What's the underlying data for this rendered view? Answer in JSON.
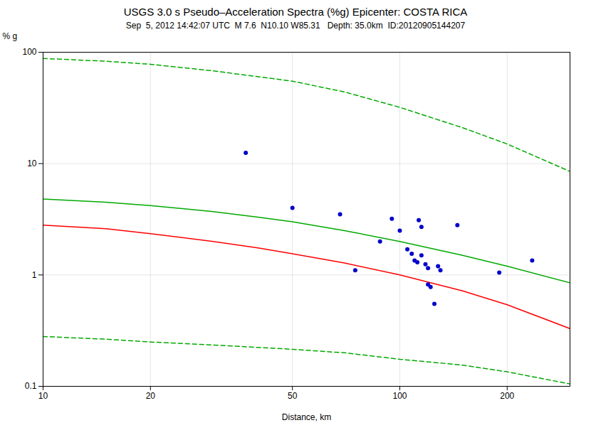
{
  "chart_data": {
    "type": "line",
    "title": "USGS 3.0 s Pseudo–Acceleration Spectra (%g) Epicenter: COSTA RICA",
    "subtitle": "Sep  5, 2012 14:42:07 UTC  M 7.6  N10.10 W85.31   Depth: 35.0km  ID:20120905144207",
    "xlabel": "Distance, km",
    "ylabel": "% g",
    "log": true,
    "grid": true,
    "xlim": [
      10,
      300
    ],
    "ylim": [
      0.1,
      100
    ],
    "xticks": [
      10,
      20,
      50,
      100,
      200
    ],
    "yticks": [
      0.1,
      1,
      10,
      100
    ],
    "series": [
      {
        "type": "line",
        "color": "#00aa00",
        "line_style": "dashed",
        "x": [
          10,
          15,
          20,
          30,
          50,
          70,
          100,
          150,
          200,
          300
        ],
        "values": [
          88,
          83,
          78,
          68,
          55,
          44,
          32,
          21,
          15,
          8.5
        ]
      },
      {
        "type": "line",
        "color": "#00aa00",
        "line_style": "dashed",
        "x": [
          10,
          15,
          20,
          30,
          50,
          70,
          100,
          150,
          200,
          300
        ],
        "values": [
          0.28,
          0.265,
          0.25,
          0.235,
          0.215,
          0.2,
          0.175,
          0.155,
          0.135,
          0.105
        ]
      },
      {
        "type": "line",
        "color": "#00aa00",
        "line_style": "solid",
        "x": [
          10,
          15,
          20,
          30,
          40,
          50,
          70,
          100,
          150,
          200,
          300
        ],
        "values": [
          4.8,
          4.5,
          4.2,
          3.7,
          3.3,
          3.0,
          2.5,
          2.0,
          1.5,
          1.2,
          0.85
        ]
      },
      {
        "type": "line",
        "color": "red",
        "line_style": "solid",
        "x": [
          10,
          15,
          20,
          30,
          40,
          50,
          70,
          100,
          150,
          200,
          300
        ],
        "values": [
          2.8,
          2.6,
          2.35,
          2.0,
          1.75,
          1.55,
          1.28,
          1.0,
          0.72,
          0.54,
          0.33
        ]
      },
      {
        "type": "scatter",
        "color": "#0000cc",
        "marker": "circle",
        "x": [
          37,
          50,
          68,
          75,
          88,
          95,
          100,
          105,
          108,
          110,
          112,
          113,
          115,
          115,
          118,
          120,
          120,
          122,
          125,
          128,
          130,
          145,
          190,
          235
        ],
        "values": [
          12.5,
          4.0,
          3.5,
          1.1,
          2.0,
          3.2,
          2.5,
          1.7,
          1.55,
          1.35,
          1.3,
          3.1,
          2.7,
          1.5,
          1.25,
          1.15,
          0.82,
          0.78,
          0.55,
          1.2,
          1.1,
          2.8,
          1.05,
          1.35
        ]
      }
    ]
  }
}
